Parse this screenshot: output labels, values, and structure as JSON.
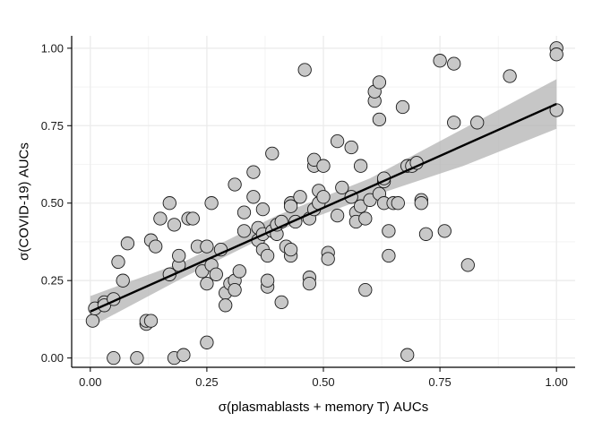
{
  "chart_data": {
    "type": "scatter",
    "title": "",
    "xlabel": "σ(plasmablasts + memory T) AUCs",
    "ylabel": "σ(COVID-19) AUCs",
    "xlim": [
      -0.04,
      1.04
    ],
    "ylim": [
      -0.03,
      1.04
    ],
    "x_ticks": [
      0.0,
      0.25,
      0.5,
      0.75,
      1.0
    ],
    "x_tick_labels": [
      "0.00",
      "0.25",
      "0.50",
      "0.75",
      "1.00"
    ],
    "y_ticks": [
      0.0,
      0.25,
      0.5,
      0.75,
      1.0
    ],
    "y_tick_labels": [
      "0.00",
      "0.25",
      "0.50",
      "0.75",
      "1.00"
    ],
    "grid": true,
    "legend": "none",
    "colors": {
      "point_fill": "#c8c8c8",
      "point_stroke": "#1a1a1a",
      "fit_line": "#000000",
      "confidence_band": "#b3b3b3",
      "grid": "#ebebeb"
    },
    "fit": {
      "type": "linear",
      "x": [
        0.0,
        1.0
      ],
      "y": [
        0.15,
        0.82
      ],
      "confidence_band": {
        "x": [
          0.0,
          0.2,
          0.4,
          0.6,
          0.8,
          1.0
        ],
        "lower": [
          0.1,
          0.26,
          0.41,
          0.52,
          0.62,
          0.74
        ],
        "upper": [
          0.2,
          0.31,
          0.46,
          0.58,
          0.74,
          0.9
        ]
      }
    },
    "points": [
      {
        "x": 0.005,
        "y": 0.12
      },
      {
        "x": 0.01,
        "y": 0.16
      },
      {
        "x": 0.03,
        "y": 0.18
      },
      {
        "x": 0.03,
        "y": 0.17
      },
      {
        "x": 0.05,
        "y": 0.19
      },
      {
        "x": 0.05,
        "y": 0.0
      },
      {
        "x": 0.06,
        "y": 0.31
      },
      {
        "x": 0.07,
        "y": 0.25
      },
      {
        "x": 0.08,
        "y": 0.37
      },
      {
        "x": 0.1,
        "y": 0.0
      },
      {
        "x": 0.12,
        "y": 0.11
      },
      {
        "x": 0.12,
        "y": 0.12
      },
      {
        "x": 0.13,
        "y": 0.12
      },
      {
        "x": 0.13,
        "y": 0.38
      },
      {
        "x": 0.14,
        "y": 0.36
      },
      {
        "x": 0.15,
        "y": 0.45
      },
      {
        "x": 0.17,
        "y": 0.5
      },
      {
        "x": 0.17,
        "y": 0.27
      },
      {
        "x": 0.18,
        "y": 0.0
      },
      {
        "x": 0.18,
        "y": 0.43
      },
      {
        "x": 0.19,
        "y": 0.3
      },
      {
        "x": 0.19,
        "y": 0.33
      },
      {
        "x": 0.2,
        "y": 0.01
      },
      {
        "x": 0.21,
        "y": 0.45
      },
      {
        "x": 0.22,
        "y": 0.45
      },
      {
        "x": 0.23,
        "y": 0.36
      },
      {
        "x": 0.24,
        "y": 0.28
      },
      {
        "x": 0.25,
        "y": 0.05
      },
      {
        "x": 0.25,
        "y": 0.36
      },
      {
        "x": 0.25,
        "y": 0.24
      },
      {
        "x": 0.26,
        "y": 0.3
      },
      {
        "x": 0.26,
        "y": 0.5
      },
      {
        "x": 0.27,
        "y": 0.27
      },
      {
        "x": 0.28,
        "y": 0.35
      },
      {
        "x": 0.29,
        "y": 0.21
      },
      {
        "x": 0.29,
        "y": 0.17
      },
      {
        "x": 0.3,
        "y": 0.24
      },
      {
        "x": 0.31,
        "y": 0.25
      },
      {
        "x": 0.31,
        "y": 0.22
      },
      {
        "x": 0.31,
        "y": 0.56
      },
      {
        "x": 0.32,
        "y": 0.28
      },
      {
        "x": 0.33,
        "y": 0.41
      },
      {
        "x": 0.33,
        "y": 0.47
      },
      {
        "x": 0.35,
        "y": 0.6
      },
      {
        "x": 0.35,
        "y": 0.52
      },
      {
        "x": 0.36,
        "y": 0.42
      },
      {
        "x": 0.36,
        "y": 0.38
      },
      {
        "x": 0.37,
        "y": 0.48
      },
      {
        "x": 0.37,
        "y": 0.4
      },
      {
        "x": 0.37,
        "y": 0.35
      },
      {
        "x": 0.38,
        "y": 0.33
      },
      {
        "x": 0.38,
        "y": 0.23
      },
      {
        "x": 0.38,
        "y": 0.25
      },
      {
        "x": 0.39,
        "y": 0.66
      },
      {
        "x": 0.39,
        "y": 0.41
      },
      {
        "x": 0.4,
        "y": 0.4
      },
      {
        "x": 0.4,
        "y": 0.43
      },
      {
        "x": 0.41,
        "y": 0.44
      },
      {
        "x": 0.41,
        "y": 0.18
      },
      {
        "x": 0.42,
        "y": 0.36
      },
      {
        "x": 0.43,
        "y": 0.33
      },
      {
        "x": 0.43,
        "y": 0.35
      },
      {
        "x": 0.43,
        "y": 0.5
      },
      {
        "x": 0.43,
        "y": 0.49
      },
      {
        "x": 0.44,
        "y": 0.44
      },
      {
        "x": 0.45,
        "y": 0.52
      },
      {
        "x": 0.46,
        "y": 0.93
      },
      {
        "x": 0.47,
        "y": 0.45
      },
      {
        "x": 0.47,
        "y": 0.26
      },
      {
        "x": 0.47,
        "y": 0.24
      },
      {
        "x": 0.48,
        "y": 0.62
      },
      {
        "x": 0.48,
        "y": 0.64
      },
      {
        "x": 0.48,
        "y": 0.48
      },
      {
        "x": 0.49,
        "y": 0.54
      },
      {
        "x": 0.49,
        "y": 0.5
      },
      {
        "x": 0.5,
        "y": 0.62
      },
      {
        "x": 0.5,
        "y": 0.52
      },
      {
        "x": 0.51,
        "y": 0.34
      },
      {
        "x": 0.51,
        "y": 0.32
      },
      {
        "x": 0.53,
        "y": 0.7
      },
      {
        "x": 0.53,
        "y": 0.46
      },
      {
        "x": 0.54,
        "y": 0.55
      },
      {
        "x": 0.56,
        "y": 0.68
      },
      {
        "x": 0.56,
        "y": 0.52
      },
      {
        "x": 0.57,
        "y": 0.47
      },
      {
        "x": 0.57,
        "y": 0.44
      },
      {
        "x": 0.58,
        "y": 0.62
      },
      {
        "x": 0.58,
        "y": 0.49
      },
      {
        "x": 0.59,
        "y": 0.22
      },
      {
        "x": 0.59,
        "y": 0.45
      },
      {
        "x": 0.6,
        "y": 0.51
      },
      {
        "x": 0.61,
        "y": 0.83
      },
      {
        "x": 0.61,
        "y": 0.86
      },
      {
        "x": 0.62,
        "y": 0.89
      },
      {
        "x": 0.62,
        "y": 0.53
      },
      {
        "x": 0.62,
        "y": 0.77
      },
      {
        "x": 0.63,
        "y": 0.57
      },
      {
        "x": 0.63,
        "y": 0.58
      },
      {
        "x": 0.63,
        "y": 0.5
      },
      {
        "x": 0.64,
        "y": 0.33
      },
      {
        "x": 0.64,
        "y": 0.41
      },
      {
        "x": 0.65,
        "y": 0.5
      },
      {
        "x": 0.66,
        "y": 0.5
      },
      {
        "x": 0.67,
        "y": 0.81
      },
      {
        "x": 0.68,
        "y": 0.62
      },
      {
        "x": 0.68,
        "y": 0.01
      },
      {
        "x": 0.69,
        "y": 0.62
      },
      {
        "x": 0.7,
        "y": 0.63
      },
      {
        "x": 0.71,
        "y": 0.51
      },
      {
        "x": 0.71,
        "y": 0.5
      },
      {
        "x": 0.72,
        "y": 0.4
      },
      {
        "x": 0.75,
        "y": 0.96
      },
      {
        "x": 0.76,
        "y": 0.41
      },
      {
        "x": 0.78,
        "y": 0.95
      },
      {
        "x": 0.78,
        "y": 0.76
      },
      {
        "x": 0.81,
        "y": 0.3
      },
      {
        "x": 0.83,
        "y": 0.76
      },
      {
        "x": 0.9,
        "y": 0.91
      },
      {
        "x": 1.0,
        "y": 1.0
      },
      {
        "x": 1.0,
        "y": 0.98
      },
      {
        "x": 1.0,
        "y": 0.8
      }
    ]
  }
}
